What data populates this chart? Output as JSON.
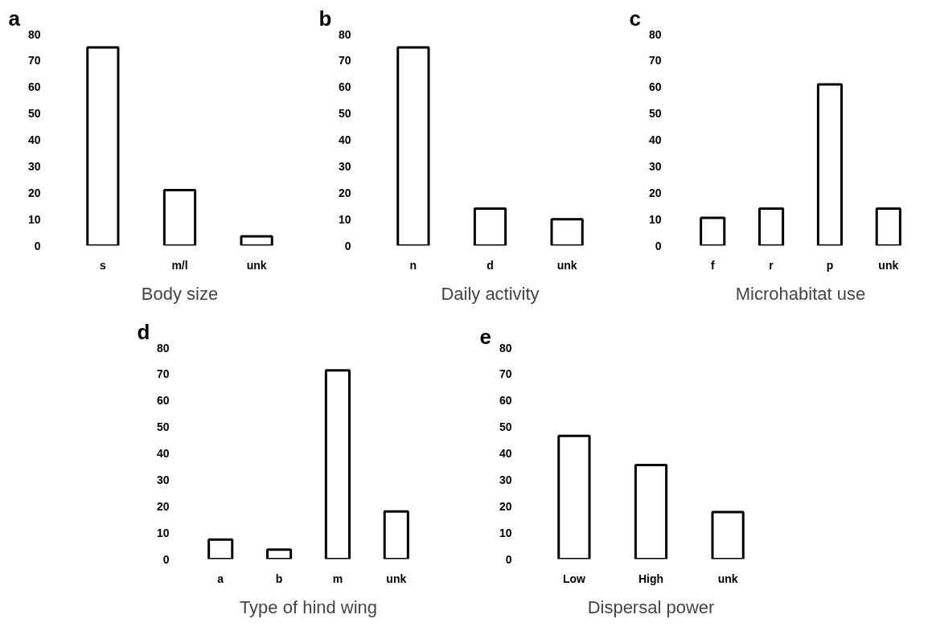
{
  "chart_data": [
    {
      "type": "bar",
      "title": "a",
      "xlabel": "Body size",
      "categories": [
        "s",
        "m/l",
        "unk"
      ],
      "values": [
        75,
        21,
        3.5
      ],
      "color": "#ffffff",
      "ylim": [
        0,
        80
      ],
      "yticks": [
        0,
        10,
        20,
        30,
        40,
        50,
        60,
        70,
        80
      ]
    },
    {
      "type": "bar",
      "title": "b",
      "xlabel": "Daily activity",
      "categories": [
        "n",
        "d",
        "unk"
      ],
      "values": [
        75,
        14,
        10
      ],
      "color": "#ffffff",
      "ylim": [
        0,
        80
      ],
      "yticks": [
        0,
        10,
        20,
        30,
        40,
        50,
        60,
        70,
        80
      ]
    },
    {
      "type": "bar",
      "title": "c",
      "xlabel": "Microhabitat use",
      "categories": [
        "f",
        "r",
        "p",
        "unk"
      ],
      "values": [
        10.5,
        14,
        61,
        14
      ],
      "color": "#ffffff",
      "ylim": [
        0,
        80
      ],
      "yticks": [
        0,
        10,
        20,
        30,
        40,
        50,
        60,
        70,
        80
      ]
    },
    {
      "type": "bar",
      "title": "d",
      "xlabel": "Type of hind wing",
      "categories": [
        "a",
        "b",
        "m",
        "unk"
      ],
      "values": [
        7.4,
        3.6,
        71.4,
        18
      ],
      "color": "#ffffff",
      "ylim": [
        0,
        80
      ],
      "yticks": [
        0,
        10,
        20,
        30,
        40,
        50,
        60,
        70,
        80
      ]
    },
    {
      "type": "bar",
      "title": "e",
      "xlabel": "Dispersal power",
      "categories": [
        "Low",
        "High",
        "unk"
      ],
      "values": [
        46.6,
        35.6,
        17.8
      ],
      "color": "#ffffff",
      "ylim": [
        0,
        80
      ],
      "yticks": [
        0,
        10,
        20,
        30,
        40,
        50,
        60,
        70,
        80
      ]
    }
  ]
}
